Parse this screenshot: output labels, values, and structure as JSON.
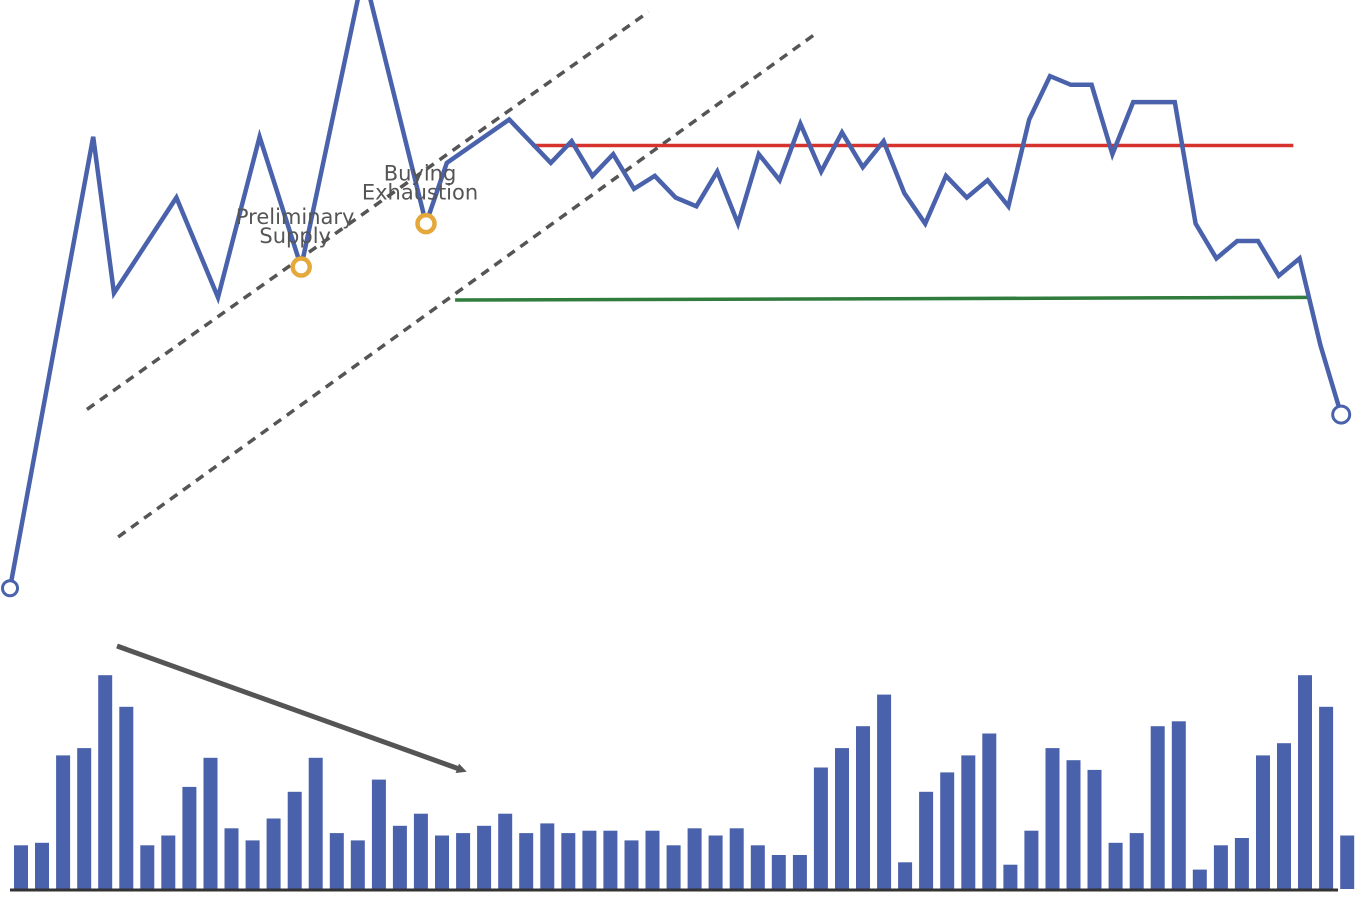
{
  "chart_data": [
    {
      "type": "line",
      "title": "",
      "xlabel": "",
      "ylabel": "",
      "x": [
        0,
        4,
        5,
        8,
        10,
        12,
        14,
        17,
        20,
        21,
        24,
        26,
        27,
        28,
        29,
        30,
        31,
        32,
        33,
        34,
        35,
        36,
        37,
        38,
        39,
        40,
        41,
        42,
        43,
        44,
        45,
        46,
        47,
        48,
        49,
        50,
        51,
        52,
        53,
        54,
        55,
        56,
        57,
        58,
        59,
        60,
        61,
        62,
        63,
        64
      ],
      "values": [
        10,
        62,
        44,
        55,
        43.5,
        62,
        47,
        81,
        52,
        59,
        64,
        59,
        61.5,
        57.5,
        60,
        56,
        57.5,
        55,
        54,
        58,
        52,
        60,
        57,
        63.5,
        58,
        62.5,
        58.5,
        61.5,
        55.5,
        52,
        57.5,
        55,
        57,
        54,
        64,
        69,
        68,
        68,
        60,
        66,
        66,
        66,
        52,
        48,
        50,
        50,
        46,
        48,
        38,
        30
      ],
      "ylim": [
        0,
        75
      ],
      "annotations": [
        {
          "label_line1": "Preliminary",
          "label_line2": "Supply",
          "x": 14,
          "y": 47
        },
        {
          "label_line1": "Buying",
          "label_line2": "Exhaustion",
          "x": 20,
          "y": 52
        }
      ],
      "resistance_level": 61,
      "support_level": 53
    },
    {
      "type": "bar",
      "series_name": "Volume",
      "values": [
        18,
        19,
        55,
        58,
        88,
        75,
        18,
        22,
        42,
        54,
        25,
        20,
        29,
        40,
        54,
        23,
        20,
        45,
        26,
        31,
        22,
        23,
        26,
        31,
        23,
        27,
        23,
        24,
        24,
        20,
        24,
        18,
        25,
        22,
        25,
        18,
        14,
        14,
        50,
        58,
        67,
        80,
        11,
        40,
        48,
        55,
        64,
        10,
        24,
        58,
        53,
        49,
        19,
        23,
        67,
        69,
        8,
        18,
        21,
        55,
        60,
        88,
        75,
        22
      ],
      "ylim": [
        0,
        100
      ],
      "trend": "decreasing"
    }
  ],
  "colors": {
    "price_line": "#4a62ab",
    "volume_bar": "#4a62ab",
    "resistance": "#d6322e",
    "support": "#2f7c3c",
    "channel": "#555555",
    "marker_highlight": "#e4a83b",
    "baseline": "#333333",
    "volume_arrow": "#555555"
  }
}
